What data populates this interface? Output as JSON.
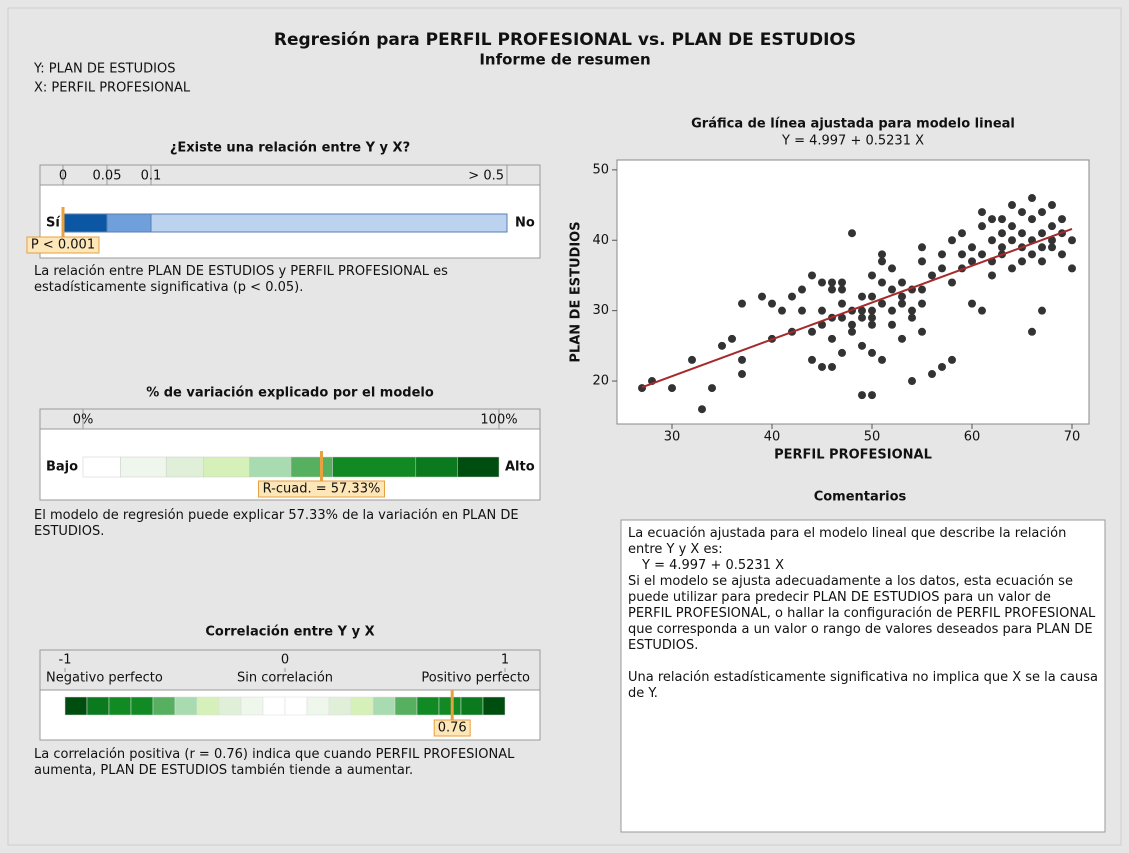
{
  "header": {
    "title": "Regresión para PERFIL PROFESIONAL vs. PLAN DE ESTUDIOS",
    "subtitle": "Informe de resumen",
    "y_def": "Y: PLAN DE ESTUDIOS",
    "x_def": "X: PERFIL PROFESIONAL"
  },
  "relation": {
    "heading": "¿Existe una relación entre Y y X?",
    "scale": [
      0,
      0.05,
      0.1,
      {
        "value": 0.5,
        "label": "> 0.5"
      }
    ],
    "left": "Sí",
    "right": "No",
    "marker": "P < 0.001",
    "text": "La relación entre PLAN DE ESTUDIOS y PERFIL PROFESIONAL es estadísticamente significativa (p < 0.05)."
  },
  "variation": {
    "heading": "% de variación explicado por el modelo",
    "scale": [
      {
        "value": 0,
        "label": "0%"
      },
      {
        "value": 100,
        "label": "100%"
      }
    ],
    "left": "Bajo",
    "right": "Alto",
    "marker": {
      "value": 57.33,
      "label": "R-cuad. = 57.33%"
    },
    "text": "El modelo de regresión puede explicar 57.33% de la variación en PLAN DE ESTUDIOS."
  },
  "correlation": {
    "heading": "Correlación entre Y y X",
    "scale": [
      -1,
      0,
      1
    ],
    "labels": [
      "Negativo perfecto",
      "Sin correlación",
      "Positivo perfecto"
    ],
    "marker": 0.76,
    "text": "La correlación positiva (r = 0.76) indica que cuando PERFIL PROFESIONAL aumenta, PLAN DE ESTUDIOS también tiende a aumentar."
  },
  "comments": {
    "heading": "Comentarios",
    "paragraphs": [
      "La ecuación ajustada para el modelo lineal que describe la relación entre Y y X es:",
      "Y = 4.997 + 0.5231 X",
      "Si el modelo se ajusta adecuadamente a los datos, esta ecuación se puede utilizar para predecir PLAN DE ESTUDIOS para un valor de PERFIL PROFESIONAL, o hallar la configuración de PERFIL PROFESIONAL que corresponda a un valor o rango de valores deseados para PLAN DE ESTUDIOS.",
      "Una relación estadísticamente significativa no implica que X se la causa de Y."
    ]
  },
  "chart_data": {
    "type": "scatter",
    "title": "Gráfica de línea ajustada para modelo lineal",
    "subtitle": "Y = 4.997 + 0.5231 X",
    "x_label": "PERFIL PROFESIONAL",
    "y_label": "PLAN DE ESTUDIOS",
    "color": "#333333",
    "line_color": "#a52a2a",
    "xlim": [
      24.5,
      71.7
    ],
    "ylim": [
      13.9,
      51.4
    ],
    "xticks": [
      30,
      40,
      50,
      60,
      70
    ],
    "yticks": [
      20,
      30,
      40,
      50
    ],
    "x": [
      27,
      28,
      30,
      32,
      33,
      34,
      35,
      36,
      37,
      37,
      37,
      39,
      40,
      40,
      41,
      42,
      42,
      43,
      43,
      44,
      44,
      44,
      45,
      45,
      45,
      45,
      46,
      46,
      46,
      46,
      46,
      47,
      47,
      47,
      47,
      47,
      48,
      48,
      48,
      48,
      49,
      49,
      49,
      49,
      49,
      50,
      50,
      50,
      50,
      50,
      50,
      50,
      51,
      51,
      51,
      51,
      51,
      52,
      52,
      52,
      52,
      53,
      53,
      53,
      53,
      54,
      54,
      54,
      54,
      55,
      55,
      55,
      55,
      56,
      56,
      57,
      57,
      58,
      58,
      58,
      59,
      59,
      60,
      60,
      60,
      61,
      61,
      61,
      62,
      62,
      62,
      63,
      63,
      63,
      64,
      64,
      64,
      65,
      65,
      65,
      65,
      66,
      66,
      66,
      66,
      67,
      67,
      67,
      67,
      67,
      68,
      68,
      68,
      68,
      69,
      69,
      70,
      70,
      61,
      62,
      64,
      63,
      59,
      57,
      55,
      66,
      69
    ],
    "y": [
      19,
      20,
      19,
      23,
      16,
      19,
      25,
      26,
      21,
      23,
      31,
      32,
      31,
      26,
      30,
      27,
      32,
      33,
      30,
      35,
      27,
      23,
      34,
      30,
      28,
      22,
      34,
      33,
      29,
      26,
      22,
      34,
      31,
      29,
      24,
      33,
      30,
      28,
      27,
      41,
      30,
      29,
      25,
      18,
      32,
      29,
      32,
      30,
      35,
      28,
      24,
      18,
      31,
      34,
      38,
      23,
      37,
      30,
      33,
      36,
      28,
      31,
      32,
      34,
      26,
      33,
      30,
      20,
      29,
      37,
      31,
      27,
      33,
      35,
      21,
      36,
      22,
      34,
      40,
      23,
      38,
      41,
      39,
      31,
      37,
      38,
      42,
      30,
      40,
      43,
      37,
      39,
      41,
      38,
      40,
      42,
      36,
      39,
      41,
      44,
      37,
      38,
      40,
      43,
      27,
      39,
      41,
      44,
      37,
      30,
      40,
      42,
      39,
      45,
      38,
      41,
      40,
      36,
      44,
      35,
      45,
      43,
      36,
      38,
      39,
      46,
      43
    ],
    "fit_line": {
      "x": [
        27,
        70
      ],
      "y": [
        19.12,
        41.61
      ]
    }
  }
}
